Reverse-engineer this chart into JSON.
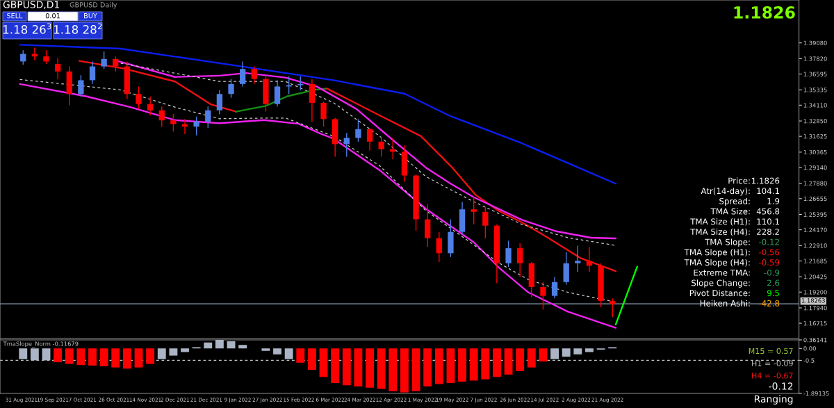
{
  "chart_data": [
    {
      "type": "candlestick",
      "title": "GBPUSD,D1",
      "subtitle": "GBPUSD Daily",
      "x": [
        "2021-09-01",
        "2021-09-08",
        "2021-09-15",
        "2021-09-22",
        "2021-09-29",
        "2021-10-06",
        "2021-10-13",
        "2021-10-20",
        "2021-10-27",
        "2021-11-03",
        "2021-11-10",
        "2021-11-17",
        "2021-11-24",
        "2021-12-01",
        "2021-12-08",
        "2021-12-15",
        "2021-12-22",
        "2021-12-29",
        "2022-01-05",
        "2022-01-12",
        "2022-01-19",
        "2022-01-26",
        "2022-02-02",
        "2022-02-09",
        "2022-02-16",
        "2022-02-23",
        "2022-03-02",
        "2022-03-09",
        "2022-03-16",
        "2022-03-23",
        "2022-03-30",
        "2022-04-06",
        "2022-04-13",
        "2022-04-20",
        "2022-04-27",
        "2022-05-04",
        "2022-05-11",
        "2022-05-18",
        "2022-05-25",
        "2022-06-01",
        "2022-06-08",
        "2022-06-15",
        "2022-06-22",
        "2022-06-29",
        "2022-07-06",
        "2022-07-13",
        "2022-07-20",
        "2022-07-27",
        "2022-08-03",
        "2022-08-10",
        "2022-08-17",
        "2022-08-24"
      ],
      "ohlc": [
        [
          1.376,
          1.385,
          1.3735,
          1.382
        ],
        [
          1.382,
          1.387,
          1.377,
          1.38
        ],
        [
          1.38,
          1.385,
          1.374,
          1.376
        ],
        [
          1.374,
          1.379,
          1.362,
          1.368
        ],
        [
          1.368,
          1.372,
          1.341,
          1.35
        ],
        [
          1.35,
          1.365,
          1.348,
          1.361
        ],
        [
          1.361,
          1.376,
          1.358,
          1.372
        ],
        [
          1.372,
          1.384,
          1.37,
          1.378
        ],
        [
          1.378,
          1.38,
          1.368,
          1.372
        ],
        [
          1.372,
          1.376,
          1.346,
          1.35
        ],
        [
          1.35,
          1.356,
          1.338,
          1.342
        ],
        [
          1.342,
          1.348,
          1.333,
          1.337
        ],
        [
          1.337,
          1.34,
          1.324,
          1.329
        ],
        [
          1.329,
          1.334,
          1.32,
          1.326
        ],
        [
          1.326,
          1.33,
          1.318,
          1.324
        ],
        [
          1.324,
          1.332,
          1.317,
          1.328
        ],
        [
          1.328,
          1.34,
          1.323,
          1.337
        ],
        [
          1.337,
          1.353,
          1.334,
          1.35
        ],
        [
          1.35,
          1.362,
          1.347,
          1.358
        ],
        [
          1.358,
          1.376,
          1.356,
          1.37
        ],
        [
          1.37,
          1.372,
          1.358,
          1.362
        ],
        [
          1.362,
          1.364,
          1.336,
          1.342
        ],
        [
          1.342,
          1.361,
          1.34,
          1.356
        ],
        [
          1.356,
          1.364,
          1.35,
          1.357
        ],
        [
          1.357,
          1.364,
          1.353,
          1.358
        ],
        [
          1.358,
          1.362,
          1.328,
          1.343
        ],
        [
          1.343,
          1.344,
          1.324,
          1.33
        ],
        [
          1.33,
          1.331,
          1.3,
          1.31
        ],
        [
          1.31,
          1.319,
          1.3,
          1.315
        ],
        [
          1.315,
          1.33,
          1.312,
          1.322
        ],
        [
          1.322,
          1.323,
          1.305,
          1.312
        ],
        [
          1.312,
          1.316,
          1.3,
          1.306
        ],
        [
          1.306,
          1.315,
          1.298,
          1.304
        ],
        [
          1.304,
          1.309,
          1.28,
          1.285
        ],
        [
          1.285,
          1.286,
          1.241,
          1.25
        ],
        [
          1.25,
          1.262,
          1.228,
          1.235
        ],
        [
          1.235,
          1.24,
          1.216,
          1.223
        ],
        [
          1.223,
          1.25,
          1.22,
          1.24
        ],
        [
          1.24,
          1.264,
          1.238,
          1.258
        ],
        [
          1.258,
          1.268,
          1.246,
          1.256
        ],
        [
          1.256,
          1.26,
          1.235,
          1.245
        ],
        [
          1.245,
          1.246,
          1.199,
          1.215
        ],
        [
          1.215,
          1.233,
          1.212,
          1.227
        ],
        [
          1.227,
          1.231,
          1.204,
          1.215
        ],
        [
          1.215,
          1.216,
          1.188,
          1.196
        ],
        [
          1.196,
          1.2,
          1.178,
          1.189
        ],
        [
          1.189,
          1.204,
          1.187,
          1.2
        ],
        [
          1.2,
          1.224,
          1.198,
          1.215
        ],
        [
          1.215,
          1.229,
          1.208,
          1.217
        ],
        [
          1.217,
          1.228,
          1.208,
          1.213
        ],
        [
          1.213,
          1.215,
          1.18,
          1.185
        ],
        [
          1.185,
          1.187,
          1.172,
          1.1826
        ]
      ],
      "colors": [
        "#4f7fe6",
        "#ff0000",
        "#ff0000",
        "#ff0000",
        "#ff0000",
        "#4f7fe6",
        "#4f7fe6",
        "#4f7fe6",
        "#ff0000",
        "#ff0000",
        "#ff0000",
        "#ff0000",
        "#ff0000",
        "#ff0000",
        "#ff0000",
        "#4f7fe6",
        "#4f7fe6",
        "#4f7fe6",
        "#4f7fe6",
        "#4f7fe6",
        "#ff0000",
        "#ff0000",
        "#4f7fe6",
        "#4f7fe6",
        "#4f7fe6",
        "#ff0000",
        "#ff0000",
        "#ff0000",
        "#4f7fe6",
        "#4f7fe6",
        "#ff0000",
        "#ff0000",
        "#ff0000",
        "#ff0000",
        "#ff0000",
        "#ff0000",
        "#ff0000",
        "#4f7fe6",
        "#4f7fe6",
        "#ff0000",
        "#ff0000",
        "#ff0000",
        "#4f7fe6",
        "#ff0000",
        "#ff0000",
        "#ff0000",
        "#4f7fe6",
        "#4f7fe6",
        "#4f7fe6",
        "#ff0000",
        "#ff0000",
        "#ff0000"
      ],
      "series": [
        {
          "type": "line",
          "color": "#0a1ef0",
          "line_style": "solid",
          "x": [
            "2021-08-30",
            "2021-10-30",
            "2022-01-10",
            "2022-03-08",
            "2022-04-20",
            "2022-05-18",
            "2022-06-30",
            "2022-08-26"
          ],
          "values": [
            1.3893,
            1.3862,
            1.3723,
            1.361,
            1.3503,
            1.3323,
            1.3108,
            1.2785
          ]
        },
        {
          "type": "line",
          "color": "#ee1111",
          "line_style": "solid",
          "x": [
            "2021-10-05",
            "2021-11-01",
            "2021-12-02",
            "2021-12-24",
            "2022-01-08"
          ],
          "values": [
            1.3764,
            1.3703,
            1.36,
            1.3416,
            1.3359
          ]
        },
        {
          "type": "line",
          "color": "#139013",
          "line_style": "solid",
          "x": [
            "2022-01-08",
            "2022-01-26",
            "2022-02-08",
            "2022-02-25",
            "2022-03-04"
          ],
          "values": [
            1.3359,
            1.3405,
            1.3482,
            1.3534,
            1.3544
          ]
        },
        {
          "type": "line",
          "color": "#ee1111",
          "line_style": "solid",
          "x": [
            "2022-03-04",
            "2022-04-06",
            "2022-04-30",
            "2022-05-19",
            "2022-06-02",
            "2022-06-16",
            "2022-06-30",
            "2022-07-14",
            "2022-08-05",
            "2022-08-26"
          ],
          "values": [
            1.3544,
            1.3323,
            1.3164,
            1.2913,
            1.2697,
            1.2569,
            1.2477,
            1.2369,
            1.2189,
            1.2087
          ]
        },
        {
          "type": "line",
          "color": "#ee22ee",
          "line_style": "solid",
          "x": [
            "2021-10-28",
            "2021-12-02",
            "2021-12-29",
            "2022-01-14",
            "2022-02-07",
            "2022-02-26",
            "2022-03-22",
            "2022-04-12",
            "2022-05-03",
            "2022-05-18",
            "2022-06-01",
            "2022-06-30",
            "2022-07-21",
            "2022-08-11",
            "2022-08-26"
          ],
          "values": [
            1.3764,
            1.3636,
            1.3646,
            1.3667,
            1.3631,
            1.3559,
            1.338,
            1.3144,
            1.2913,
            1.2785,
            1.2677,
            1.2497,
            1.2405,
            1.2354,
            1.2348
          ]
        },
        {
          "type": "line",
          "color": "#ee22ee",
          "line_style": "solid",
          "x": [
            "2021-08-30",
            "2021-10-09",
            "2021-11-05",
            "2021-12-02",
            "2021-12-29",
            "2022-01-25",
            "2022-02-15",
            "2022-02-28",
            "2022-03-08",
            "2022-04-05",
            "2022-05-03",
            "2022-06-01",
            "2022-06-16",
            "2022-07-04",
            "2022-07-28",
            "2022-08-26"
          ],
          "values": [
            1.358,
            1.3482,
            1.3395,
            1.3292,
            1.3267,
            1.3292,
            1.3262,
            1.3185,
            1.3144,
            1.2892,
            1.2584,
            1.2318,
            1.2118,
            1.1918,
            1.1764,
            1.1635
          ]
        },
        {
          "type": "line",
          "color": "#c8c8c8",
          "line_style": "dashed",
          "x": [
            "2021-10-27",
            "2021-12-29",
            "2022-02-07",
            "2022-03-08",
            "2022-04-05",
            "2022-05-03",
            "2022-06-01",
            "2022-06-30",
            "2022-07-28",
            "2022-08-26"
          ],
          "values": [
            1.3754,
            1.36,
            1.36,
            1.3431,
            1.3164,
            1.2841,
            1.2641,
            1.2461,
            1.2354,
            1.2292
          ]
        },
        {
          "type": "line",
          "color": "#c8c8c8",
          "line_style": "dashed",
          "x": [
            "2021-08-30",
            "2021-10-30",
            "2021-12-02",
            "2021-12-29",
            "2022-01-25",
            "2022-02-07",
            "2022-03-08",
            "2022-04-05",
            "2022-05-03",
            "2022-06-01",
            "2022-06-16",
            "2022-07-04",
            "2022-07-28",
            "2022-08-26"
          ],
          "values": [
            1.3616,
            1.3533,
            1.3395,
            1.3303,
            1.3308,
            1.3308,
            1.3164,
            1.2928,
            1.2569,
            1.2297,
            1.2154,
            1.202,
            1.1918,
            1.1841
          ]
        },
        {
          "type": "line",
          "color": "#00ff00",
          "line_style": "solid",
          "x": [
            "2022-08-26",
            "2022-09-08"
          ],
          "values": [
            1.1661,
            1.2123
          ]
        }
      ],
      "xlim": [
        "2021-08-18",
        "2022-12-15"
      ],
      "ylim": [
        1.155,
        1.425
      ],
      "yticks": [
        {
          "value": 1.3908,
          "label": "1.39080"
        },
        {
          "value": 1.3782,
          "label": "1.37820"
        },
        {
          "value": 1.36595,
          "label": "1.36595"
        },
        {
          "value": 1.35335,
          "label": "1.35335"
        },
        {
          "value": 1.3411,
          "label": "1.34110"
        },
        {
          "value": 1.3285,
          "label": "1.32850"
        },
        {
          "value": 1.31625,
          "label": "1.31625"
        },
        {
          "value": 1.30365,
          "label": "1.30365"
        },
        {
          "value": 1.2914,
          "label": "1.29140"
        },
        {
          "value": 1.2788,
          "label": "1.27880"
        },
        {
          "value": 1.26655,
          "label": "1.26655"
        },
        {
          "value": 1.25395,
          "label": "1.25395"
        },
        {
          "value": 1.2417,
          "label": "1.24170"
        },
        {
          "value": 1.2291,
          "label": "1.22910"
        },
        {
          "value": 1.21685,
          "label": "1.21685"
        },
        {
          "value": 1.20425,
          "label": "1.20425"
        },
        {
          "value": 1.192,
          "label": "1.19200"
        },
        {
          "value": 1.1794,
          "label": "1.17940"
        },
        {
          "value": 1.16715,
          "label": "1.16715"
        }
      ],
      "tick_labels": "y",
      "ref_lines": [
        {
          "axis": "y",
          "value": 1.18263,
          "label": "1.18263",
          "color": "#8fa3b8"
        }
      ],
      "annotations": [
        "SELL",
        "0.01",
        "BUY",
        "1.18 26$^{3}$",
        "1.18 28$^{2}$",
        "1.1826",
        "Price: 1.1826",
        "Atr(14-day): 104.1",
        "Spread: 1.9",
        "TMA Size: 456.8",
        "TMA Size (H1): 110.1",
        "TMA Size (H4): 228.2",
        "TMA Slope: -0.12",
        "TMA Slope (H1): -0.56",
        "TMA Slope (H4): -0.59",
        "Extreme TMA: -0.9",
        "Slope Change: 2.6",
        "Pivot Distance: 9.5",
        "Heiken Ashi: -42.8"
      ]
    },
    {
      "type": "bar",
      "title": "TmaSlope_Norm -0.11679",
      "x": [
        "2021-09-01",
        "2021-09-08",
        "2021-09-15",
        "2021-09-22",
        "2021-09-29",
        "2021-10-06",
        "2021-10-13",
        "2021-10-20",
        "2021-10-27",
        "2021-11-03",
        "2021-11-10",
        "2021-11-17",
        "2021-11-24",
        "2021-12-01",
        "2021-12-08",
        "2021-12-15",
        "2021-12-22",
        "2021-12-29",
        "2022-01-05",
        "2022-01-12",
        "2022-01-19",
        "2022-01-26",
        "2022-02-02",
        "2022-02-09",
        "2022-02-16",
        "2022-02-23",
        "2022-03-02",
        "2022-03-09",
        "2022-03-16",
        "2022-03-23",
        "2022-03-30",
        "2022-04-06",
        "2022-04-13",
        "2022-04-20",
        "2022-04-27",
        "2022-05-04",
        "2022-05-11",
        "2022-05-18",
        "2022-05-25",
        "2022-06-01",
        "2022-06-08",
        "2022-06-15",
        "2022-06-22",
        "2022-06-29",
        "2022-07-06",
        "2022-07-13",
        "2022-07-20",
        "2022-07-27",
        "2022-08-03",
        "2022-08-10",
        "2022-08-17",
        "2022-08-24"
      ],
      "values": [
        -0.45,
        -0.5,
        -0.5,
        -0.58,
        -0.65,
        -0.7,
        -0.72,
        -0.75,
        -0.8,
        -0.85,
        -0.8,
        -0.65,
        -0.45,
        -0.3,
        -0.15,
        0.05,
        0.25,
        0.36,
        0.3,
        0.15,
        0.0,
        -0.1,
        -0.25,
        -0.45,
        -0.6,
        -0.9,
        -1.2,
        -1.45,
        -1.55,
        -1.6,
        -1.65,
        -1.7,
        -1.8,
        -1.85,
        -1.8,
        -1.6,
        -1.5,
        -1.45,
        -1.4,
        -1.35,
        -1.3,
        -1.2,
        -1.1,
        -0.95,
        -0.8,
        -0.55,
        -0.45,
        -0.35,
        -0.25,
        -0.15,
        -0.05,
        0.05
      ],
      "colors": [
        "#aab4c4",
        "#aab4c4",
        "#aab4c4",
        "#ff0000",
        "#ff0000",
        "#ff0000",
        "#ff0000",
        "#ff0000",
        "#ff0000",
        "#ff0000",
        "#ff0000",
        "#ff0000",
        "#aab4c4",
        "#aab4c4",
        "#aab4c4",
        "#aab4c4",
        "#aab4c4",
        "#aab4c4",
        "#aab4c4",
        "#aab4c4",
        "#aab4c4",
        "#aab4c4",
        "#aab4c4",
        "#aab4c4",
        "#ff0000",
        "#ff0000",
        "#ff0000",
        "#ff0000",
        "#ff0000",
        "#ff0000",
        "#ff0000",
        "#ff0000",
        "#ff0000",
        "#ff0000",
        "#ff0000",
        "#ff0000",
        "#ff0000",
        "#ff0000",
        "#ff0000",
        "#ff0000",
        "#ff0000",
        "#ff0000",
        "#ff0000",
        "#ff0000",
        "#ff0000",
        "#ff0000",
        "#aab4c4",
        "#aab4c4",
        "#aab4c4",
        "#aab4c4",
        "#aab4c4",
        "#aab4c4"
      ],
      "xlim": [
        "2021-08-18",
        "2022-12-15"
      ],
      "xticks": [
        {
          "value": "2021-08-31",
          "label": "31 Aug 2021"
        },
        {
          "value": "2021-09-19",
          "label": "19 Sep 2021"
        },
        {
          "value": "2021-10-07",
          "label": "7 Oct 2021"
        },
        {
          "value": "2021-10-26",
          "label": "26 Oct 2021"
        },
        {
          "value": "2021-11-14",
          "label": "14 Nov 2021"
        },
        {
          "value": "2021-12-02",
          "label": "2 Dec 2021"
        },
        {
          "value": "2021-12-21",
          "label": "21 Dec 2021"
        },
        {
          "value": "2022-01-09",
          "label": "9 Jan 2022"
        },
        {
          "value": "2022-01-27",
          "label": "27 Jan 2022"
        },
        {
          "value": "2022-02-15",
          "label": "15 Feb 2022"
        },
        {
          "value": "2022-03-06",
          "label": "6 Mar 2022"
        },
        {
          "value": "2022-03-24",
          "label": "24 Mar 2022"
        },
        {
          "value": "2022-04-12",
          "label": "12 Apr 2022"
        },
        {
          "value": "2022-05-01",
          "label": "1 May 2022"
        },
        {
          "value": "2022-05-19",
          "label": "19 May 2022"
        },
        {
          "value": "2022-06-07",
          "label": "7 Jun 2022"
        },
        {
          "value": "2022-06-26",
          "label": "26 Jun 2022"
        },
        {
          "value": "2022-07-14",
          "label": "14 Jul 2022"
        },
        {
          "value": "2022-08-02",
          "label": "2 Aug 2022"
        },
        {
          "value": "2022-08-21",
          "label": "21 Aug 2022"
        }
      ],
      "ylim": [
        -1.89135,
        0.36141
      ],
      "yticks": [
        0.36141,
        {
          "value": 0.0,
          "label": "0.00"
        },
        -0.5,
        -1.89135
      ],
      "ref_lines": [
        {
          "axis": "y",
          "value": -0.5,
          "color": "#c8c8c8",
          "line_style": "dashed"
        }
      ],
      "annotations": [
        "M15 = 0.57",
        "H1 = -0.09",
        "H4 = -0.67",
        "-0.12",
        "Ranging"
      ]
    }
  ]
}
